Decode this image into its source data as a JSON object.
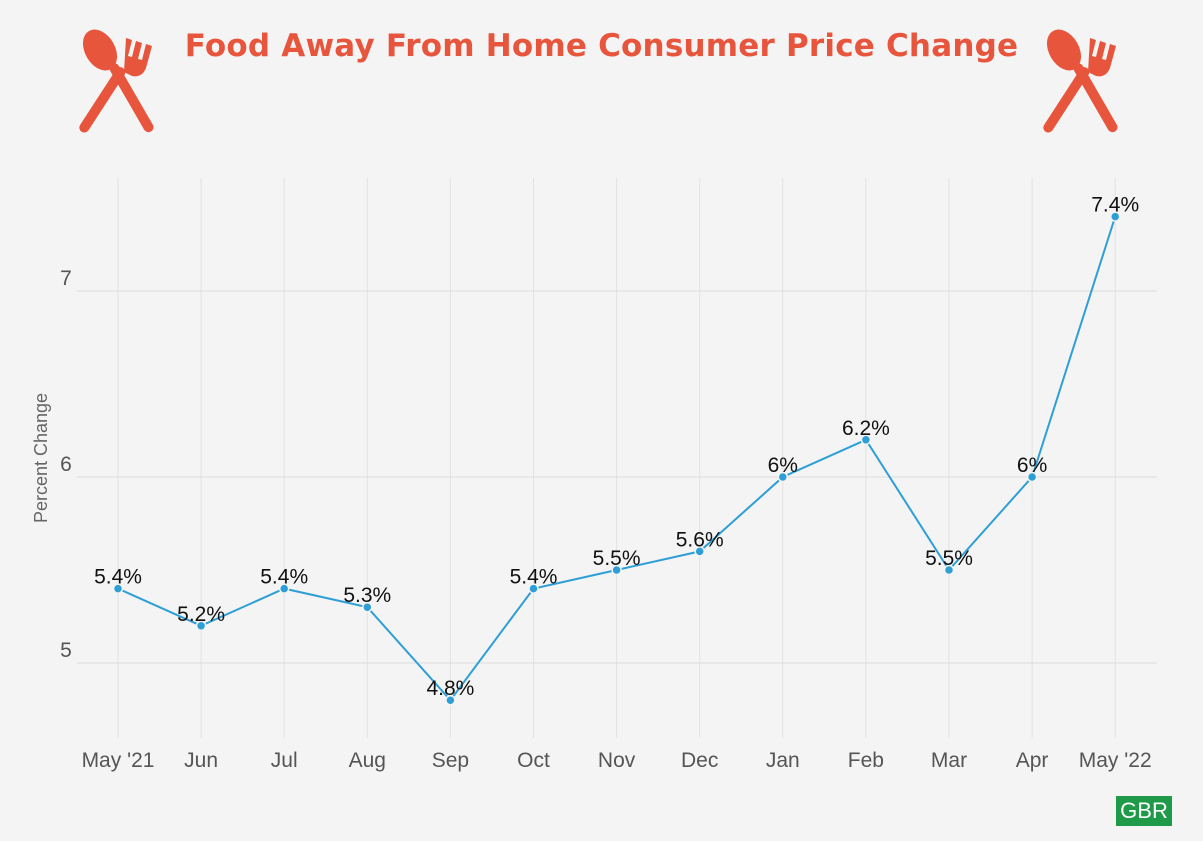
{
  "header": {
    "title": "Food Away From Home Consumer Price Change",
    "icon_left": "fork-spoon-icon",
    "icon_right": "fork-spoon-icon",
    "icon_color": "#e8553d"
  },
  "badge": {
    "label": "GBR",
    "color": "#1f9a48"
  },
  "chart_data": {
    "type": "line",
    "title": "Food Away From Home Consumer Price Change",
    "xlabel": "",
    "ylabel": "Percent Change",
    "categories": [
      "May '21",
      "Jun",
      "Jul",
      "Aug",
      "Sep",
      "Oct",
      "Nov",
      "Dec",
      "Jan",
      "Feb",
      "Mar",
      "Apr",
      "May '22"
    ],
    "series": [
      {
        "values": [
          5.4,
          5.2,
          5.4,
          5.3,
          4.8,
          5.4,
          5.5,
          5.6,
          6,
          6.2,
          5.5,
          6,
          7.4
        ],
        "data_labels": [
          "5.4%",
          "5.2%",
          "5.4%",
          "5.3%",
          "4.8%",
          "5.4%",
          "5.5%",
          "5.6%",
          "6%",
          "6.2%",
          "5.5%",
          "6%",
          "7.4%"
        ],
        "color": "#2e9fd6"
      }
    ],
    "yticks": [
      5,
      6,
      7
    ],
    "ylim": [
      4.6,
      7.6
    ],
    "grid": true,
    "legend": "none"
  }
}
